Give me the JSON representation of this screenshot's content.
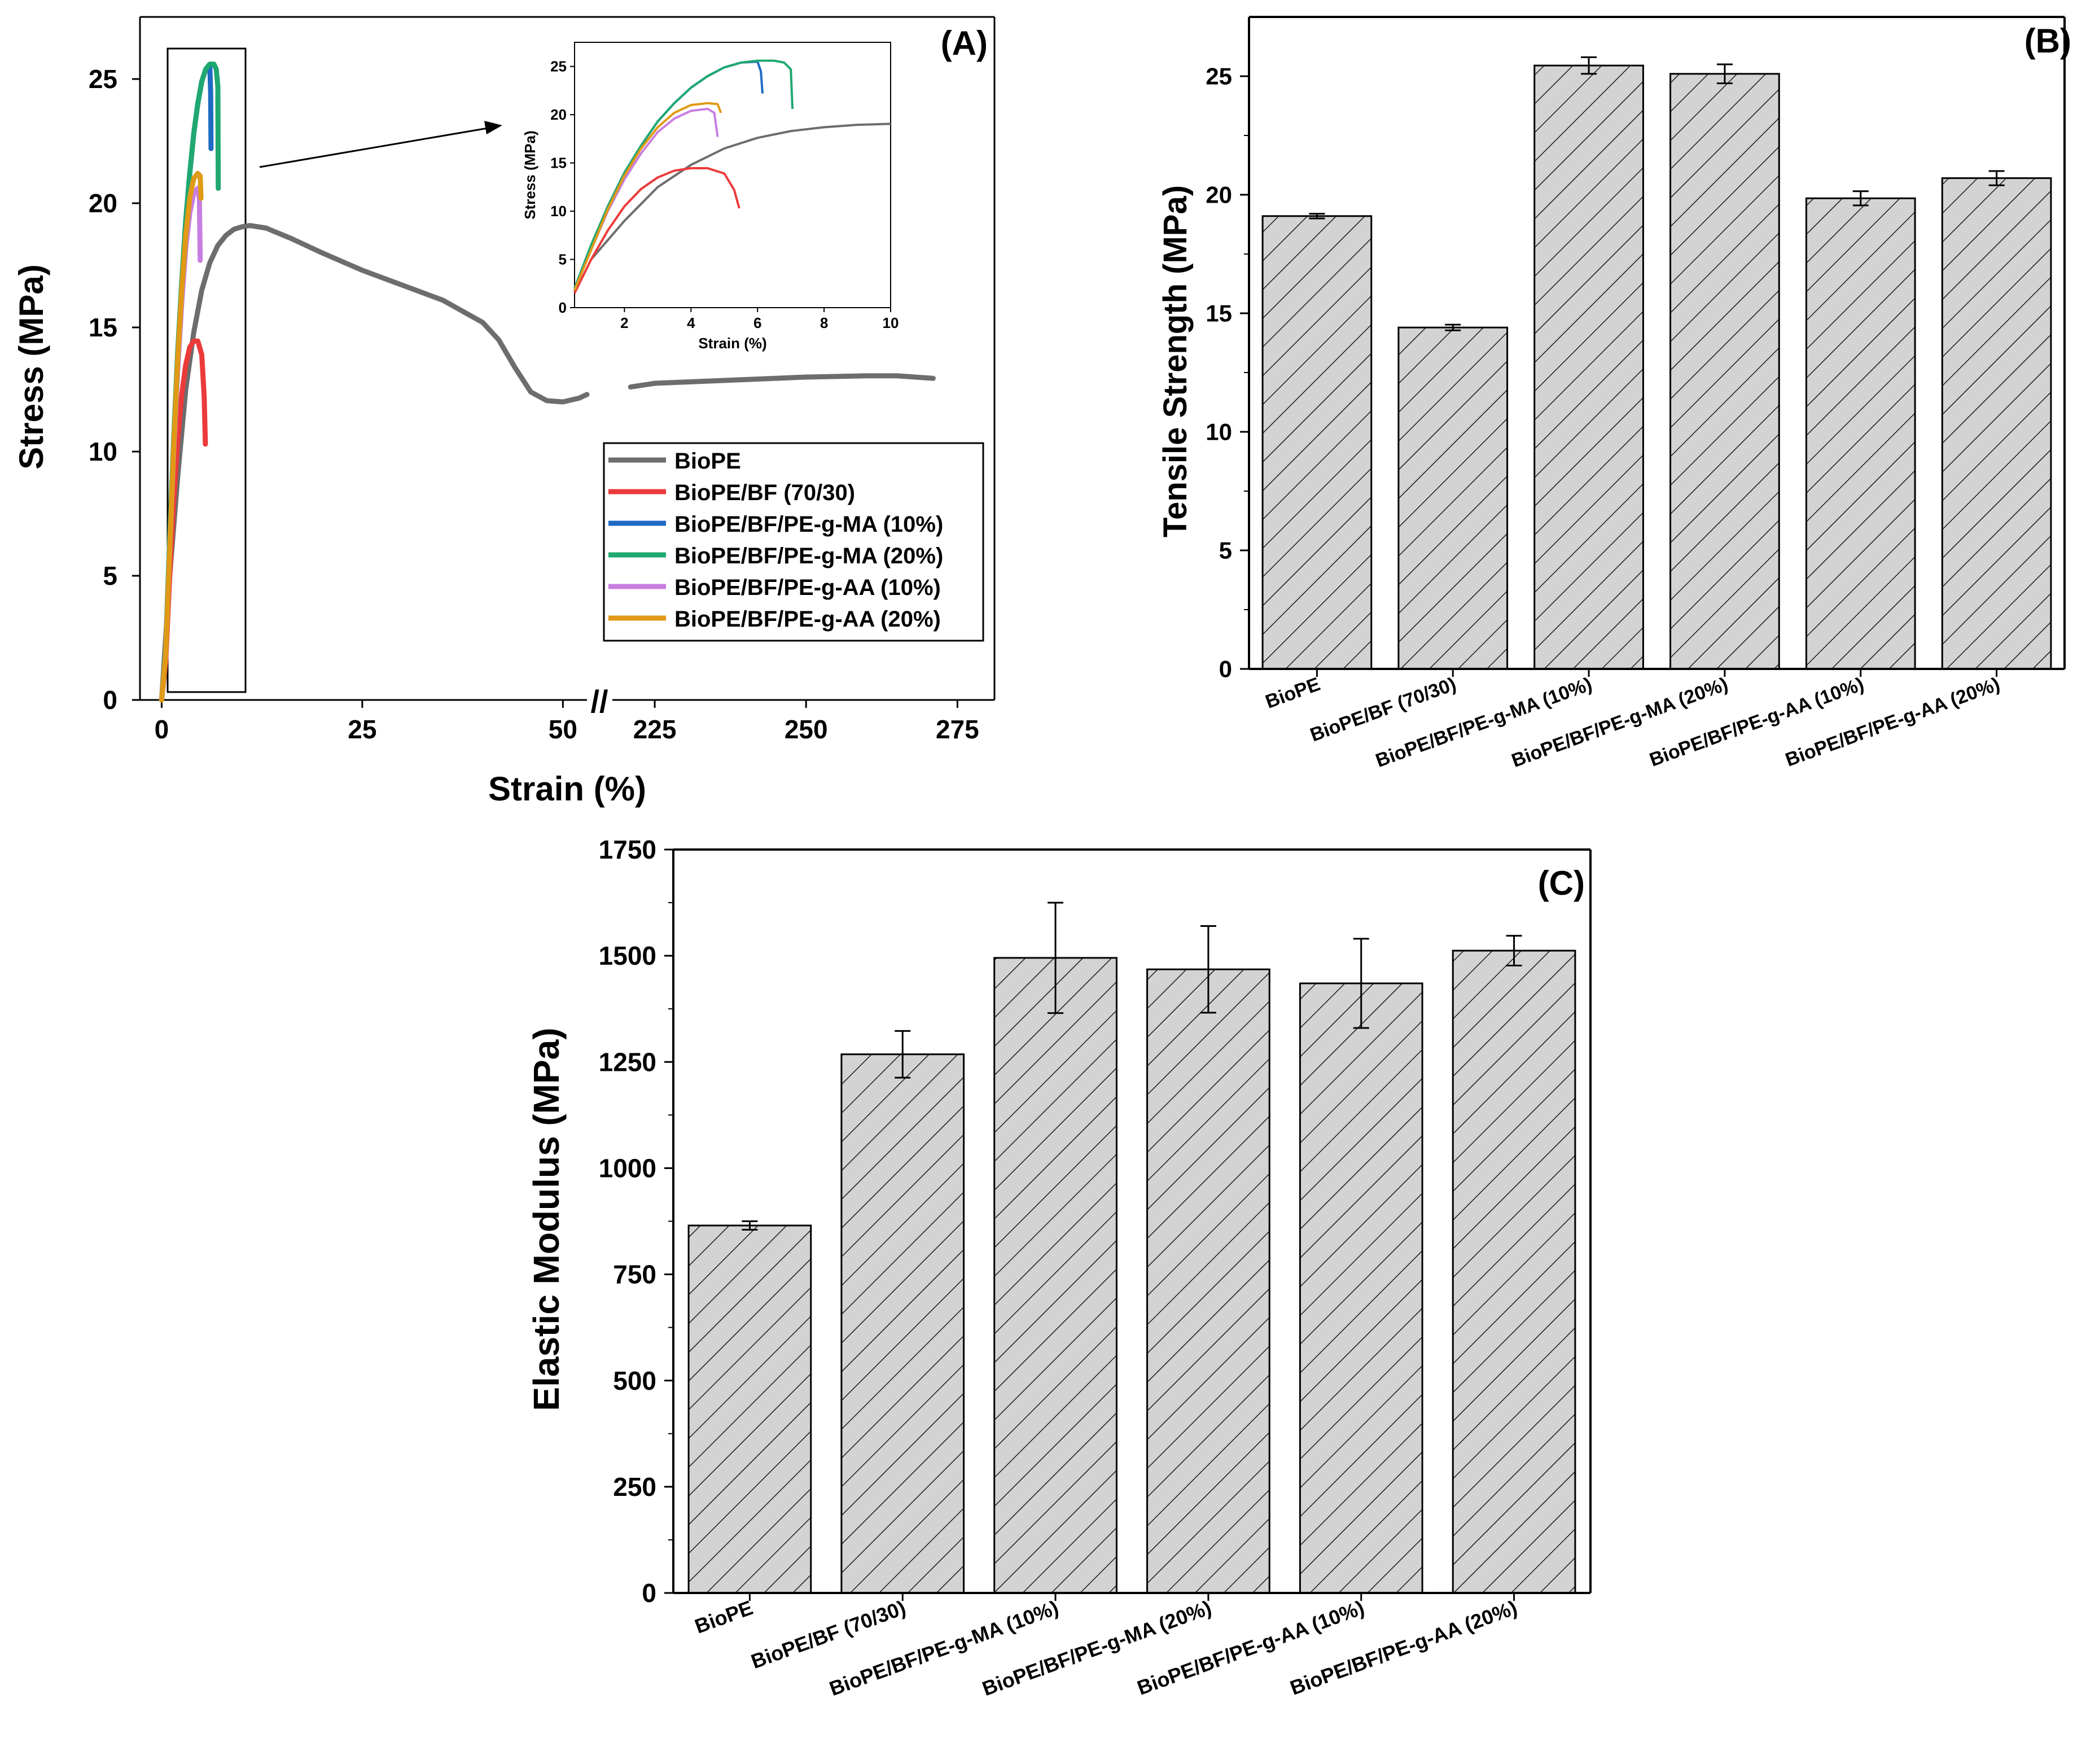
{
  "figure": {
    "chart_data": [
      {
        "panel": "(A)",
        "type": "line",
        "xlabel": "Strain (%)",
        "ylabel": "Stress (MPa)",
        "ylim": [
          0,
          27.5
        ],
        "yticks": [
          0,
          5,
          10,
          15,
          20,
          25
        ],
        "x_segments": [
          {
            "range": [
              -2,
              53
            ],
            "ticks": [
              0,
              25,
              50
            ]
          },
          {
            "range": [
              218,
              280
            ],
            "ticks": [
              225,
              250,
              275
            ]
          }
        ],
        "axis_break_label": "//",
        "legend_position": "lower-right",
        "series": [
          {
            "name": "BioPE",
            "color": "#6d6d6d",
            "points": [
              [
                0,
                0
              ],
              [
                1,
                5
              ],
              [
                2,
                9
              ],
              [
                3,
                12.5
              ],
              [
                4,
                14.8
              ],
              [
                5,
                16.5
              ],
              [
                6,
                17.6
              ],
              [
                7,
                18.3
              ],
              [
                8,
                18.7
              ],
              [
                9,
                18.95
              ],
              [
                10,
                19.05
              ],
              [
                11,
                19.1
              ],
              [
                13,
                19.0
              ],
              [
                16,
                18.6
              ],
              [
                20,
                18.0
              ],
              [
                25,
                17.3
              ],
              [
                30,
                16.7
              ],
              [
                35,
                16.1
              ],
              [
                40,
                15.2
              ],
              [
                42,
                14.5
              ],
              [
                44,
                13.4
              ],
              [
                46,
                12.4
              ],
              [
                48,
                12.05
              ],
              [
                50,
                12.0
              ],
              [
                52,
                12.15
              ],
              [
                53,
                12.3
              ],
              [
                221,
                12.6
              ],
              [
                225,
                12.75
              ],
              [
                235,
                12.85
              ],
              [
                250,
                13.0
              ],
              [
                260,
                13.05
              ],
              [
                265,
                13.05
              ],
              [
                271,
                12.95
              ]
            ]
          },
          {
            "name": "BioPE/BF (70/30)",
            "color": "#ec3a3a",
            "points": [
              [
                0,
                0
              ],
              [
                0.5,
                1.5
              ],
              [
                1,
                5
              ],
              [
                1.5,
                8
              ],
              [
                2,
                10.5
              ],
              [
                2.5,
                12.3
              ],
              [
                3,
                13.5
              ],
              [
                3.5,
                14.2
              ],
              [
                4,
                14.45
              ],
              [
                4.5,
                14.45
              ],
              [
                5,
                13.9
              ],
              [
                5.3,
                12.2
              ],
              [
                5.45,
                10.3
              ]
            ]
          },
          {
            "name": "BioPE/BF/PE-g-MA (10%)",
            "color": "#1f6bc4",
            "points": [
              [
                0,
                0
              ],
              [
                0.5,
                2
              ],
              [
                1,
                6.5
              ],
              [
                1.5,
                10.5
              ],
              [
                2,
                14
              ],
              [
                2.5,
                16.8
              ],
              [
                3,
                19.3
              ],
              [
                3.5,
                21.2
              ],
              [
                4,
                22.8
              ],
              [
                4.5,
                24
              ],
              [
                5,
                24.9
              ],
              [
                5.5,
                25.4
              ],
              [
                6,
                25.5
              ],
              [
                6.1,
                24.5
              ],
              [
                6.15,
                22.2
              ]
            ]
          },
          {
            "name": "BioPE/BF/PE-g-MA (20%)",
            "color": "#1fa870",
            "points": [
              [
                0,
                0
              ],
              [
                0.5,
                2
              ],
              [
                1,
                6.5
              ],
              [
                1.5,
                10.5
              ],
              [
                2,
                14
              ],
              [
                2.5,
                16.8
              ],
              [
                3,
                19.3
              ],
              [
                3.5,
                21.2
              ],
              [
                4,
                22.8
              ],
              [
                4.5,
                24
              ],
              [
                5,
                24.9
              ],
              [
                5.5,
                25.4
              ],
              [
                6,
                25.6
              ],
              [
                6.5,
                25.6
              ],
              [
                6.8,
                25.4
              ],
              [
                7,
                24.7
              ],
              [
                7.05,
                20.6
              ]
            ]
          },
          {
            "name": "BioPE/BF/PE-g-AA (10%)",
            "color": "#c77ee0",
            "points": [
              [
                0,
                0
              ],
              [
                0.5,
                1.8
              ],
              [
                1,
                6
              ],
              [
                1.5,
                10
              ],
              [
                2,
                13.3
              ],
              [
                2.5,
                16
              ],
              [
                3,
                18.2
              ],
              [
                3.5,
                19.6
              ],
              [
                4,
                20.4
              ],
              [
                4.5,
                20.6
              ],
              [
                4.7,
                20.2
              ],
              [
                4.8,
                17.7
              ]
            ]
          },
          {
            "name": "BioPE/BF/PE-g-AA (20%)",
            "color": "#e09a16",
            "points": [
              [
                0,
                0
              ],
              [
                0.5,
                1.8
              ],
              [
                1,
                6
              ],
              [
                1.5,
                10.2
              ],
              [
                2,
                13.7
              ],
              [
                2.5,
                16.5
              ],
              [
                3,
                18.7
              ],
              [
                3.5,
                20.2
              ],
              [
                4,
                21.0
              ],
              [
                4.5,
                21.2
              ],
              [
                4.8,
                21.1
              ],
              [
                4.9,
                20.2
              ]
            ]
          }
        ],
        "inset": {
          "xlabel": "Strain (%)",
          "ylabel": "Stress (MPa)",
          "xlim": [
            0.5,
            10
          ],
          "ylim": [
            0,
            27.5
          ],
          "xticks": [
            2,
            4,
            6,
            8,
            10
          ],
          "yticks": [
            0,
            5,
            10,
            15,
            20,
            25
          ]
        }
      },
      {
        "panel": "(B)",
        "type": "bar",
        "ylabel": "Tensile Strength (MPa)",
        "ylim": [
          0,
          27.5
        ],
        "yticks": [
          0,
          5,
          10,
          15,
          20,
          25
        ],
        "categories": [
          "BioPE",
          "BioPE/BF (70/30)",
          "BioPE/BF/PE-g-MA (10%)",
          "BioPE/BF/PE-g-MA (20%)",
          "BioPE/BF/PE-g-AA (10%)",
          "BioPE/BF/PE-g-AA (20%)"
        ],
        "values": [
          19.1,
          14.4,
          25.45,
          25.1,
          19.85,
          20.7
        ],
        "errors": [
          0.1,
          0.12,
          0.35,
          0.4,
          0.3,
          0.3
        ],
        "fill": "#d3d3d3",
        "hatch": "diagonal"
      },
      {
        "panel": "(C)",
        "type": "bar",
        "ylabel": "Elastic Modulus (MPa)",
        "ylim": [
          0,
          1750
        ],
        "yticks": [
          0,
          250,
          500,
          750,
          1000,
          1250,
          1500,
          1750
        ],
        "categories": [
          "BioPE",
          "BioPE/BF (70/30)",
          "BioPE/BF/PE-g-MA (10%)",
          "BioPE/BF/PE-g-MA (20%)",
          "BioPE/BF/PE-g-AA (10%)",
          "BioPE/BF/PE-g-AA (20%)"
        ],
        "values": [
          865,
          1268,
          1495,
          1468,
          1435,
          1512
        ],
        "errors": [
          10,
          55,
          130,
          102,
          105,
          35
        ],
        "fill": "#d3d3d3",
        "hatch": "diagonal"
      }
    ]
  }
}
